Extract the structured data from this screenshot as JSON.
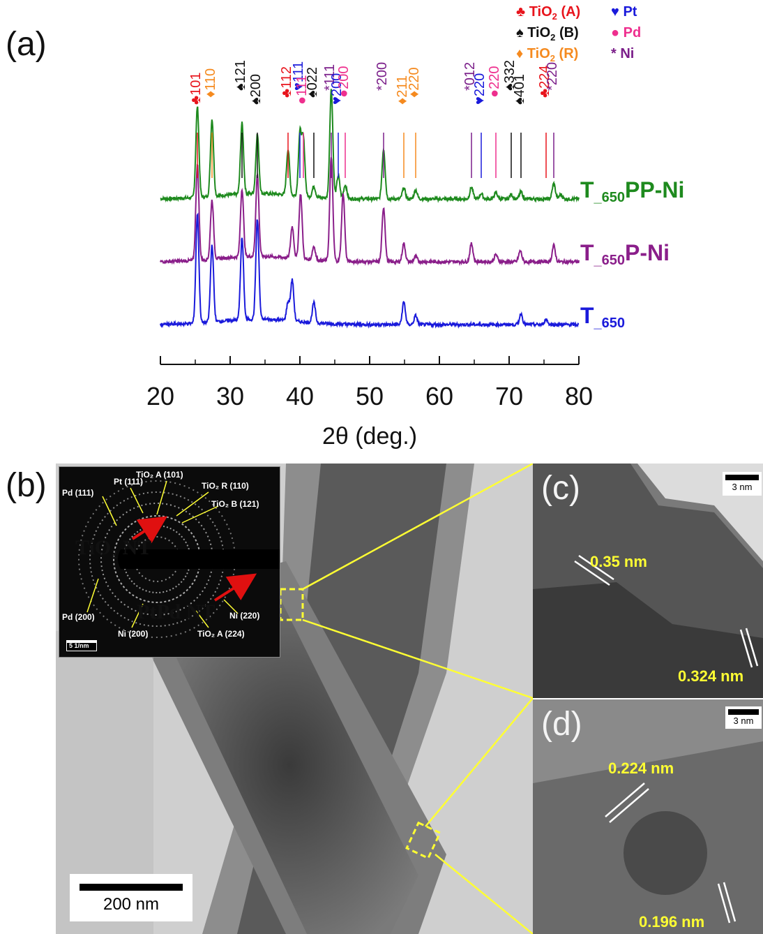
{
  "panels": {
    "a": "(a)",
    "b": "(b)",
    "c": "(c)",
    "d": "(d)"
  },
  "legend": [
    {
      "sym": "♣",
      "label": "TiO",
      "sub": "2",
      "suffix": " (A)",
      "color": "#e8141c"
    },
    {
      "sym": "♠",
      "label": "TiO",
      "sub": "2",
      "suffix": " (B)",
      "color": "#111111"
    },
    {
      "sym": "♦",
      "label": "TiO",
      "sub": "2",
      "suffix": " (R)",
      "color": "#f58a1f"
    },
    {
      "sym": "♥",
      "label": "Pt",
      "sub": "",
      "suffix": "",
      "color": "#1a1adb"
    },
    {
      "sym": "●",
      "label": "Pd",
      "sub": "",
      "suffix": "",
      "color": "#ee2f8e"
    },
    {
      "sym": "*",
      "label": "Ni",
      "sub": "",
      "suffix": "",
      "color": "#7b1f8a"
    }
  ],
  "chart_data": {
    "type": "line",
    "xlabel": "2θ (deg.)",
    "xlim": [
      20,
      80
    ],
    "xticks": [
      20,
      30,
      40,
      50,
      60,
      70,
      80
    ],
    "series": [
      {
        "name": "T_650PP-Ni",
        "label_main": "T",
        "label_sub": "_650",
        "label_tail": "PP-Ni",
        "color": "#1e8a1e",
        "peaks": [
          [
            25.3,
            1.0
          ],
          [
            27.4,
            0.85
          ],
          [
            31.7,
            0.78
          ],
          [
            33.9,
            0.65
          ],
          [
            38.3,
            0.5
          ],
          [
            40.0,
            0.68
          ],
          [
            40.5,
            0.62
          ],
          [
            42.0,
            0.12
          ],
          [
            44.5,
            1.2
          ],
          [
            45.5,
            0.25
          ],
          [
            46.5,
            0.15
          ],
          [
            52.0,
            0.55
          ],
          [
            54.9,
            0.12
          ],
          [
            56.6,
            0.1
          ],
          [
            64.6,
            0.13
          ],
          [
            66.0,
            0.06
          ],
          [
            68.1,
            0.07
          ],
          [
            70.3,
            0.05
          ],
          [
            71.7,
            0.08
          ],
          [
            76.4,
            0.17
          ],
          [
            77.4,
            0.05
          ]
        ]
      },
      {
        "name": "T_650P-Ni",
        "label_main": "T",
        "label_sub": "_650",
        "label_tail": "P-Ni",
        "color": "#8a1e8a",
        "peaks": [
          [
            25.3,
            1.05
          ],
          [
            27.4,
            0.65
          ],
          [
            31.7,
            0.75
          ],
          [
            33.9,
            0.9
          ],
          [
            38.9,
            0.35
          ],
          [
            40.1,
            0.72
          ],
          [
            42.0,
            0.15
          ],
          [
            44.5,
            1.15
          ],
          [
            46.2,
            0.75
          ],
          [
            52.0,
            0.6
          ],
          [
            54.9,
            0.2
          ],
          [
            56.6,
            0.06
          ],
          [
            64.6,
            0.2
          ],
          [
            68.1,
            0.08
          ],
          [
            71.6,
            0.12
          ],
          [
            76.4,
            0.18
          ]
        ]
      },
      {
        "name": "T_650",
        "label_main": "T",
        "label_sub": "_650",
        "label_tail": "",
        "color": "#1a1adb",
        "peaks": [
          [
            25.3,
            1.2
          ],
          [
            27.4,
            0.85
          ],
          [
            31.7,
            0.9
          ],
          [
            33.9,
            1.1
          ],
          [
            38.3,
            0.2
          ],
          [
            38.9,
            0.45
          ],
          [
            42.0,
            0.22
          ],
          [
            54.9,
            0.25
          ],
          [
            56.6,
            0.1
          ],
          [
            71.7,
            0.12
          ],
          [
            75.3,
            0.06
          ]
        ]
      }
    ],
    "annotations": [
      {
        "x": 25.3,
        "hkl": "101",
        "sym": "♣",
        "color": "#e8141c"
      },
      {
        "x": 27.4,
        "hkl": "110",
        "sym": "♦",
        "color": "#f58a1f"
      },
      {
        "x": 31.7,
        "hkl": "121",
        "sym": "♠",
        "color": "#111111"
      },
      {
        "x": 33.9,
        "hkl": "200",
        "sym": "♠",
        "color": "#111111"
      },
      {
        "x": 38.3,
        "hkl": "112",
        "sym": "♣",
        "color": "#e8141c"
      },
      {
        "x": 40.0,
        "hkl": "111",
        "sym": "♥",
        "color": "#1a1adb"
      },
      {
        "x": 40.5,
        "hkl": "111",
        "sym": "●",
        "color": "#ee2f8e"
      },
      {
        "x": 42.0,
        "hkl": "022",
        "sym": "♠",
        "color": "#111111"
      },
      {
        "x": 44.5,
        "hkl": "111",
        "sym": "*",
        "color": "#7b1f8a"
      },
      {
        "x": 45.5,
        "hkl": "200",
        "sym": "♥",
        "color": "#1a1adb"
      },
      {
        "x": 46.5,
        "hkl": "200",
        "sym": "●",
        "color": "#ee2f8e"
      },
      {
        "x": 52.0,
        "hkl": "200",
        "sym": "*",
        "color": "#7b1f8a"
      },
      {
        "x": 54.9,
        "hkl": "211",
        "sym": "♦",
        "color": "#f58a1f"
      },
      {
        "x": 56.6,
        "hkl": "220",
        "sym": "♦",
        "color": "#f58a1f"
      },
      {
        "x": 64.6,
        "hkl": "012",
        "sym": "*",
        "color": "#7b1f8a"
      },
      {
        "x": 66.0,
        "hkl": "220",
        "sym": "♥",
        "color": "#1a1adb"
      },
      {
        "x": 68.1,
        "hkl": "220",
        "sym": "●",
        "color": "#ee2f8e"
      },
      {
        "x": 70.3,
        "hkl": "332",
        "sym": "♠",
        "color": "#111111"
      },
      {
        "x": 71.7,
        "hkl": "401",
        "sym": "♠",
        "color": "#111111"
      },
      {
        "x": 75.3,
        "hkl": "224",
        "sym": "♣",
        "color": "#e8141c"
      },
      {
        "x": 76.4,
        "hkl": "220",
        "sym": "*",
        "color": "#7b1f8a"
      }
    ]
  },
  "tem": {
    "scale_bar": "200 nm",
    "labels": {
      "tio2": "TiO₂ NT",
      "ptpd": "PtPd NT"
    },
    "saed": {
      "scale": "5 1/nm",
      "rings": [
        "Pt (111)",
        "TiO₂ A (101)",
        "TiO₂ R (110)",
        "TiO₂ B (121)",
        "Pd (111)",
        "Pd (200)",
        "Ni (200)",
        "TiO₂ A (224)",
        "Ni (220)"
      ]
    },
    "c": {
      "scale": "3 nm",
      "d1": "0.35 nm",
      "d2": "0.324 nm"
    },
    "d": {
      "scale": "3 nm",
      "d1": "0.224 nm",
      "d2": "0.196 nm"
    }
  }
}
